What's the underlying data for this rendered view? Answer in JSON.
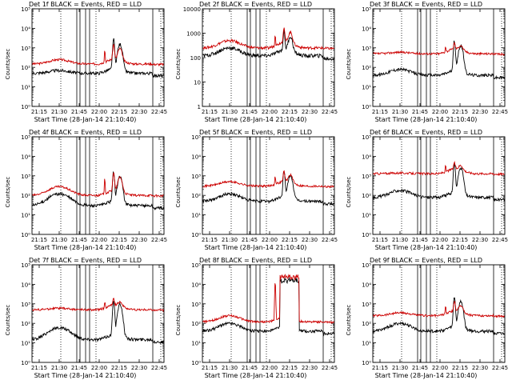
{
  "chart_data": [
    {
      "type": "line",
      "title": "Det 1f BLACK = Events, RED = LLD",
      "xlabel": "Start Time (28-Jan-14 21:10:40)",
      "ylabel": "Counts/sec",
      "ylog": true,
      "ylim": [
        1,
        100000
      ],
      "yticks": [
        1,
        10,
        100,
        1000,
        10000,
        100000
      ],
      "yticklabels": [
        "10⁰",
        "10¹",
        "10²",
        "10³",
        "10⁴",
        "10⁵"
      ],
      "xlim": [
        21.16,
        22.81
      ],
      "xticks": [
        21.25,
        21.5,
        21.75,
        22.0,
        22.25,
        22.5,
        22.75
      ],
      "xticklabels": [
        "21:15",
        "21:30",
        "21:45",
        "22:00",
        "22:15",
        "22:30",
        "22:45"
      ],
      "red_base": 150,
      "red_bump": 250,
      "black_base": 50,
      "black_bump": 70,
      "red_flare": 1500,
      "black_flare": 3000
    },
    {
      "type": "line",
      "title": "Det 2f BLACK = Events, RED = LLD",
      "xlabel": "Start Time (28-Jan-14 21:10:40)",
      "ylabel": "Counts/sec",
      "ylog": true,
      "ylim": [
        1,
        10000
      ],
      "yticks": [
        1,
        10,
        100,
        1000,
        10000
      ],
      "yticklabels": [
        "1",
        "10",
        "100",
        "1000",
        "10000"
      ],
      "xlim": [
        21.16,
        22.81
      ],
      "xticks": [
        21.25,
        21.5,
        21.75,
        22.0,
        22.25,
        22.5,
        22.75
      ],
      "xticklabels": [
        "21:15",
        "21:30",
        "21:45",
        "22:00",
        "22:15",
        "22:30",
        "22:45"
      ],
      "red_base": 250,
      "red_bump": 500,
      "black_base": 120,
      "black_bump": 250,
      "red_flare": 1600,
      "black_flare": 1200
    },
    {
      "type": "line",
      "title": "Det 3f BLACK = Events, RED = LLD",
      "xlabel": "Start Time (28-Jan-14 21:10:40)",
      "ylabel": "Counts/sec",
      "ylog": true,
      "ylim": [
        1,
        100000
      ],
      "yticks": [
        1,
        10,
        100,
        1000,
        10000,
        100000
      ],
      "yticklabels": [
        "10⁰",
        "10¹",
        "10²",
        "10³",
        "10⁴",
        "10⁵"
      ],
      "xlim": [
        21.16,
        22.81
      ],
      "xticks": [
        21.25,
        21.5,
        21.75,
        22.0,
        22.25,
        22.5,
        22.75
      ],
      "xticklabels": [
        "21:15",
        "21:30",
        "21:45",
        "22:00",
        "22:15",
        "22:30",
        "22:45"
      ],
      "red_base": 500,
      "red_bump": 600,
      "black_base": 40,
      "black_bump": 80,
      "red_flare": 1500,
      "black_flare": 2500
    },
    {
      "type": "line",
      "title": "Det 4f BLACK = Events, RED = LLD",
      "xlabel": "Start Time (28-Jan-14 21:10:40)",
      "ylabel": "Counts/sec",
      "ylog": true,
      "ylim": [
        1,
        100000
      ],
      "yticks": [
        1,
        10,
        100,
        1000,
        10000,
        100000
      ],
      "yticklabels": [
        "10⁰",
        "10¹",
        "10²",
        "10³",
        "10⁴",
        "10⁵"
      ],
      "xlim": [
        21.16,
        22.81
      ],
      "xticks": [
        21.25,
        21.5,
        21.75,
        22.0,
        22.25,
        22.5,
        22.75
      ],
      "xticklabels": [
        "21:15",
        "21:30",
        "21:45",
        "22:00",
        "22:15",
        "22:30",
        "22:45"
      ],
      "red_base": 100,
      "red_bump": 280,
      "black_base": 30,
      "black_bump": 120,
      "red_flare": 1500,
      "black_flare": 1800
    },
    {
      "type": "line",
      "title": "Det 5f BLACK = Events, RED = LLD",
      "xlabel": "Start Time (28-Jan-14 21:10:40)",
      "ylabel": "Counts/sec",
      "ylog": true,
      "ylim": [
        1,
        100000
      ],
      "yticks": [
        1,
        10,
        100,
        1000,
        10000,
        100000
      ],
      "yticklabels": [
        "10⁰",
        "10¹",
        "10²",
        "10³",
        "10⁴",
        "10⁵"
      ],
      "xlim": [
        21.16,
        22.81
      ],
      "xticks": [
        21.25,
        21.5,
        21.75,
        22.0,
        22.25,
        22.5,
        22.75
      ],
      "xticklabels": [
        "21:15",
        "21:30",
        "21:45",
        "22:00",
        "22:15",
        "22:30",
        "22:45"
      ],
      "red_base": 300,
      "red_bump": 500,
      "black_base": 50,
      "black_bump": 120,
      "red_flare": 1600,
      "black_flare": 2000
    },
    {
      "type": "line",
      "title": "Det 6f BLACK = Events, RED = LLD",
      "xlabel": "Start Time (28-Jan-14 21:10:40)",
      "ylabel": "Counts/sec",
      "ylog": true,
      "ylim": [
        1,
        100000
      ],
      "yticks": [
        1,
        10,
        100,
        1000,
        10000,
        100000
      ],
      "yticklabels": [
        "10⁰",
        "10¹",
        "10²",
        "10³",
        "10⁴",
        "10⁵"
      ],
      "xlim": [
        21.16,
        22.81
      ],
      "xticks": [
        21.25,
        21.5,
        21.75,
        22.0,
        22.25,
        22.5,
        22.75
      ],
      "xticklabels": [
        "21:15",
        "21:30",
        "21:45",
        "22:00",
        "22:15",
        "22:30",
        "22:45"
      ],
      "red_base": 1300,
      "red_bump": 1400,
      "black_base": 80,
      "black_bump": 180,
      "red_flare": 4000,
      "black_flare": 5000
    },
    {
      "type": "line",
      "title": "Det 7f BLACK = Events, RED = LLD",
      "xlabel": "Start Time (28-Jan-14 21:10:40)",
      "ylabel": "Counts/sec",
      "ylog": true,
      "ylim": [
        1,
        100000
      ],
      "yticks": [
        1,
        10,
        100,
        1000,
        10000,
        100000
      ],
      "yticklabels": [
        "10⁰",
        "10¹",
        "10²",
        "10³",
        "10⁴",
        "10⁵"
      ],
      "xlim": [
        21.16,
        22.81
      ],
      "xticks": [
        21.25,
        21.5,
        21.75,
        22.0,
        22.25,
        22.5,
        22.75
      ],
      "xticklabels": [
        "21:15",
        "21:30",
        "21:45",
        "22:00",
        "22:15",
        "22:30",
        "22:45"
      ],
      "red_base": 500,
      "red_bump": 600,
      "black_base": 15,
      "black_bump": 60,
      "red_flare": 1500,
      "black_flare": 1800
    },
    {
      "type": "line",
      "title": "Det 8f BLACK = Events, RED = LLD",
      "xlabel": "Start Time (28-Jan-14 21:10:40)",
      "ylabel": "Counts/sec",
      "ylog": true,
      "ylim": [
        1,
        100000
      ],
      "yticks": [
        1,
        10,
        100,
        1000,
        10000,
        100000
      ],
      "yticklabels": [
        "10⁰",
        "10¹",
        "10²",
        "10³",
        "10⁴",
        "10⁵"
      ],
      "xlim": [
        21.16,
        22.81
      ],
      "xticks": [
        21.25,
        21.5,
        21.75,
        22.0,
        22.25,
        22.5,
        22.75
      ],
      "xticklabels": [
        "21:15",
        "21:30",
        "21:45",
        "22:00",
        "22:15",
        "22:30",
        "22:45"
      ],
      "red_base": 120,
      "red_bump": 250,
      "black_base": 40,
      "black_bump": 100,
      "red_flare": 30000,
      "black_flare": 20000
    },
    {
      "type": "line",
      "title": "Det 9f BLACK = Events, RED = LLD",
      "xlabel": "Start Time (28-Jan-14 21:10:40)",
      "ylabel": "Counts/sec",
      "ylog": true,
      "ylim": [
        1,
        100000
      ],
      "yticks": [
        1,
        10,
        100,
        1000,
        10000,
        100000
      ],
      "yticklabels": [
        "10⁰",
        "10¹",
        "10²",
        "10³",
        "10⁴",
        "10⁵"
      ],
      "xlim": [
        21.16,
        22.81
      ],
      "xticks": [
        21.25,
        21.5,
        21.75,
        22.0,
        22.25,
        22.5,
        22.75
      ],
      "xticklabels": [
        "21:15",
        "21:30",
        "21:45",
        "22:00",
        "22:15",
        "22:30",
        "22:45"
      ],
      "red_base": 250,
      "red_bump": 350,
      "black_base": 40,
      "black_bump": 100,
      "red_flare": 1200,
      "black_flare": 2500
    }
  ],
  "colors": {
    "events": "#000000",
    "lld": "#cc0000",
    "axis": "#000000",
    "background": "#ffffff"
  },
  "markers": {
    "dotted_lines": [
      21.52,
      21.96,
      22.77
    ],
    "solid_lines": [
      21.72,
      21.76,
      21.83,
      21.88,
      22.67
    ]
  }
}
